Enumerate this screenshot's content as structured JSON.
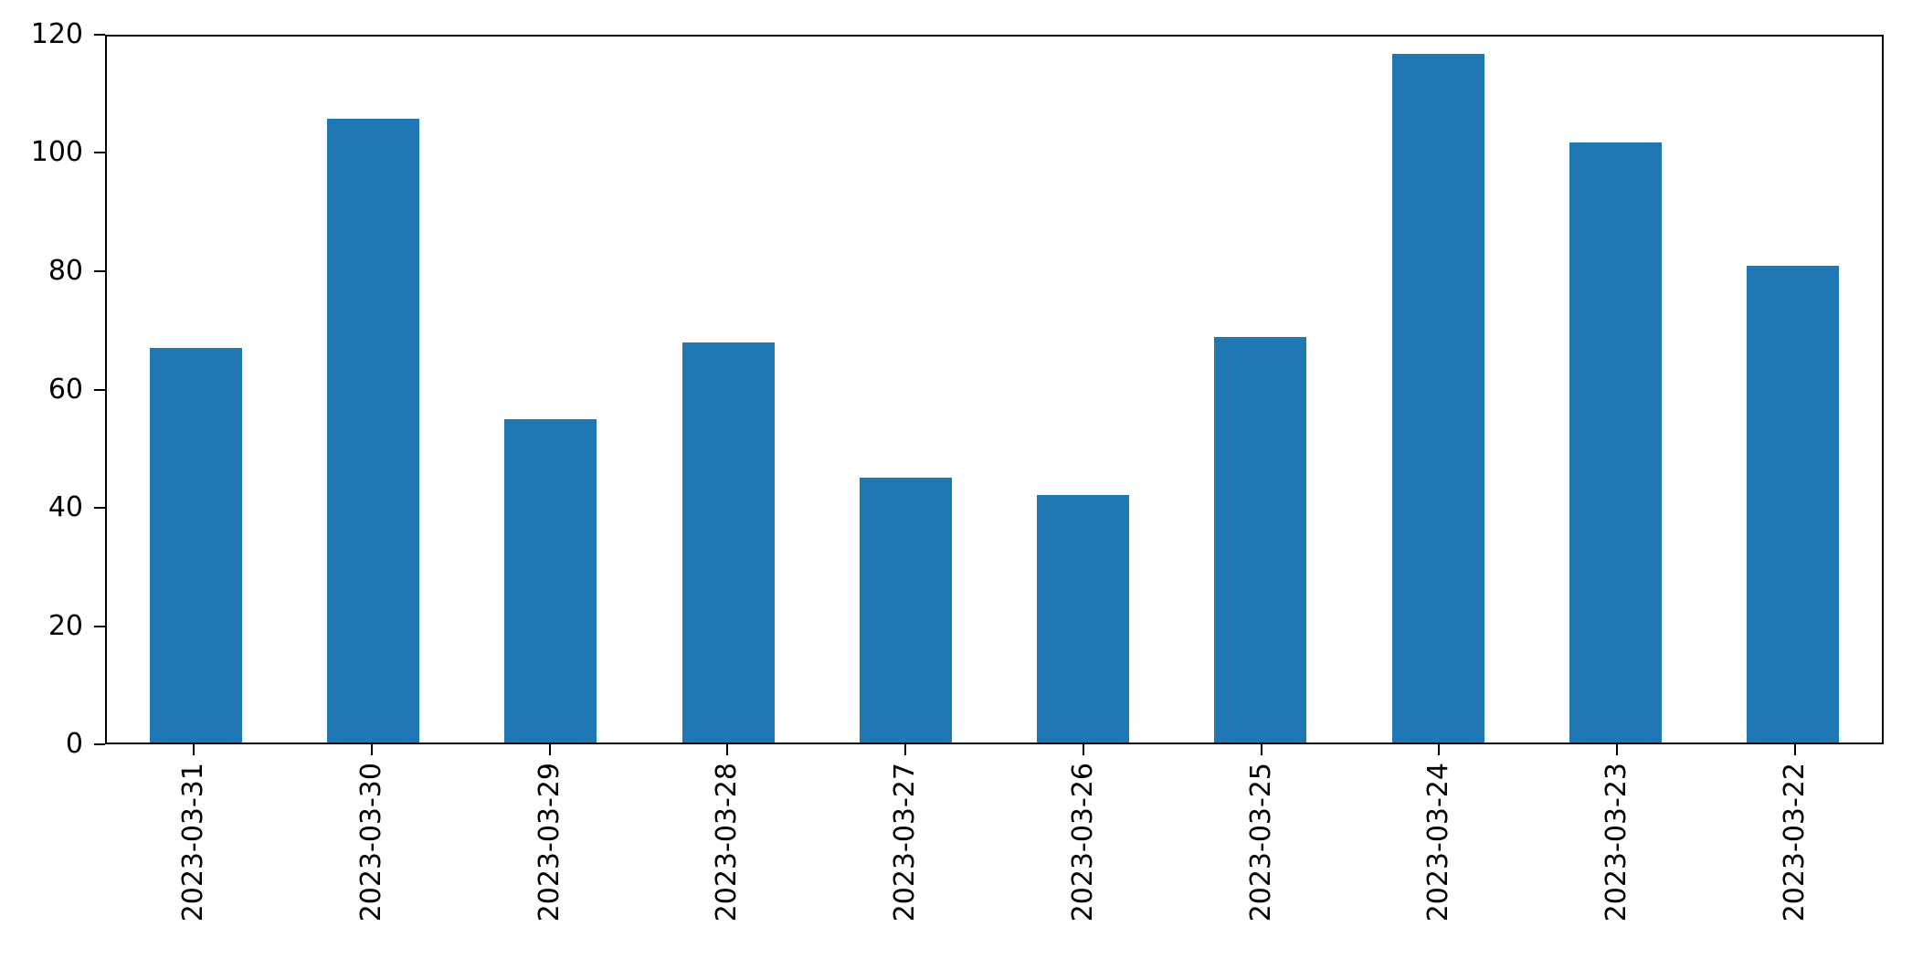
{
  "chart_data": {
    "type": "bar",
    "title": "",
    "xlabel": "",
    "ylabel": "",
    "categories": [
      "2023-03-31",
      "2023-03-30",
      "2023-03-29",
      "2023-03-28",
      "2023-03-27",
      "2023-03-26",
      "2023-03-25",
      "2023-03-24",
      "2023-03-23",
      "2023-03-22"
    ],
    "values": [
      67,
      106,
      55,
      68,
      45,
      42,
      69,
      117,
      102,
      81
    ],
    "ylim": [
      0,
      120
    ],
    "yticks": [
      0,
      20,
      40,
      60,
      80,
      100,
      120
    ],
    "bar_color": "#1f77b4",
    "bar_width_fraction": 0.52,
    "grid": false,
    "legend": null,
    "x_tick_rotation_deg": 90
  }
}
